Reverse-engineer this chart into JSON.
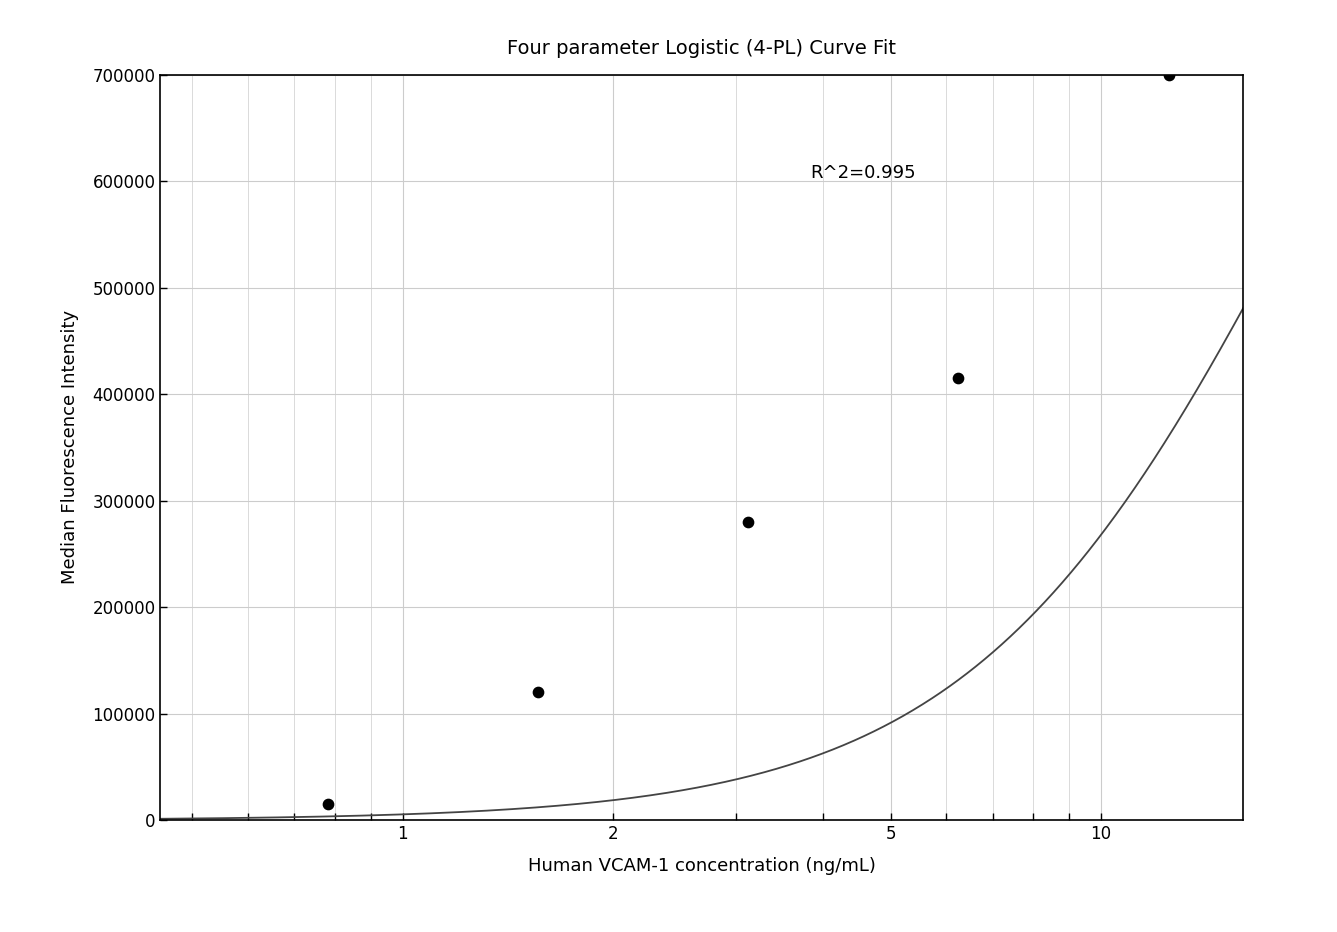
{
  "title": "Four parameter Logistic (4-PL) Curve Fit",
  "xlabel": "Human VCAM-1 concentration (ng/mL)",
  "ylabel": "Median Fluorescence Intensity",
  "r_squared": "R^2=0.995",
  "data_x": [
    0.781,
    1.5625,
    3.125,
    6.25,
    12.5
  ],
  "data_y": [
    15000,
    120000,
    280000,
    415000,
    700000
  ],
  "xmin": 0.45,
  "xmax": 16.0,
  "ymin": 0,
  "ymax": 700000,
  "xticks": [
    1,
    2,
    5,
    10
  ],
  "yticks": [
    0,
    100000,
    200000,
    300000,
    400000,
    500000,
    600000,
    700000
  ],
  "ytick_labels": [
    "0",
    "100000",
    "200000",
    "300000",
    "400000",
    "500000",
    "600000",
    "700000"
  ],
  "curve_color": "#444444",
  "point_color": "#000000",
  "background_color": "#ffffff",
  "grid_color": "#cccccc",
  "title_fontsize": 14,
  "label_fontsize": 13,
  "tick_fontsize": 12,
  "annotation_fontsize": 13
}
